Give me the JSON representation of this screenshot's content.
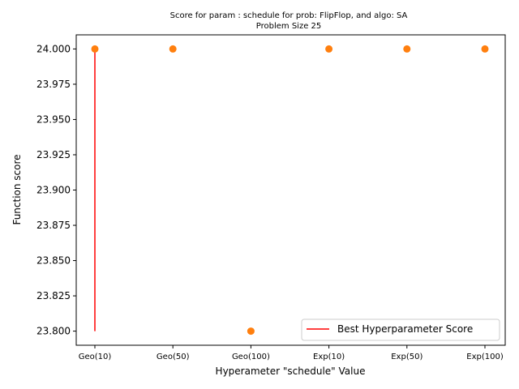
{
  "chart_data": {
    "type": "scatter",
    "title": "Score for param : schedule for prob: FlipFlop, and algo: SA",
    "subtitle": "Problem Size 25",
    "xlabel": "Hyperameter \"schedule\" Value",
    "ylabel": "Function score",
    "categories": [
      "Geo(10)",
      "Geo(50)",
      "Geo(100)",
      "Exp(10)",
      "Exp(50)",
      "Exp(100)"
    ],
    "values": [
      24.0,
      24.0,
      23.8,
      24.0,
      24.0,
      24.0
    ],
    "ylim": [
      23.79,
      24.01
    ],
    "yticks": [
      23.8,
      23.825,
      23.85,
      23.875,
      23.9,
      23.925,
      23.95,
      23.975,
      24.0
    ],
    "ytick_labels": [
      "23.800",
      "23.825",
      "23.850",
      "23.875",
      "23.900",
      "23.925",
      "23.950",
      "23.975",
      "24.000"
    ],
    "best_line": {
      "name": "Best Hyperparameter Score",
      "category": "Geo(10)",
      "y_range": [
        23.8,
        24.0
      ],
      "color": "#ff0000"
    },
    "point_color": "#ff7f0e",
    "grid": false,
    "legend_position": "lower-right"
  }
}
